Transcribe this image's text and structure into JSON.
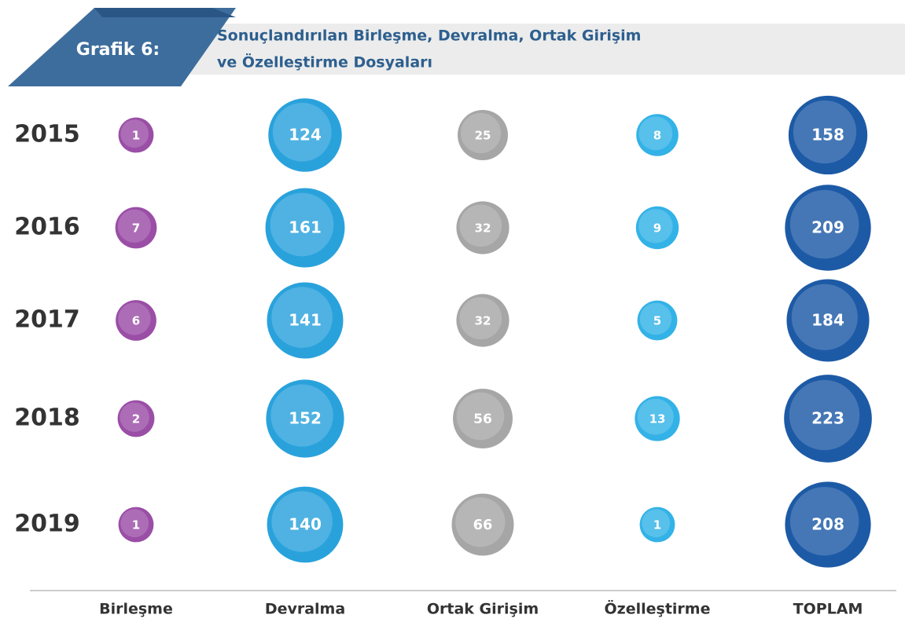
{
  "chart_data": {
    "type": "bubble",
    "label": "Grafik 6:",
    "title": [
      "Sonuçlandırılan Birleşme, Devralma, Ortak Girişim",
      "ve Özelleştirme Dosyaları"
    ],
    "categories": [
      "2015",
      "2016",
      "2017",
      "2018",
      "2019"
    ],
    "series": [
      {
        "name": "Birleşme",
        "color": "#9a4ea6",
        "values": [
          1,
          7,
          6,
          2,
          1
        ]
      },
      {
        "name": "Devralma",
        "color": "#29a2dc",
        "values": [
          124,
          161,
          141,
          152,
          140
        ]
      },
      {
        "name": "Ortak Girişim",
        "color": "#a6a6a6",
        "values": [
          25,
          32,
          32,
          56,
          66
        ]
      },
      {
        "name": "Özelleştirme",
        "color": "#33b2e7",
        "values": [
          8,
          9,
          5,
          13,
          1
        ]
      },
      {
        "name": "TOPLAM",
        "color": "#1d5aa6",
        "values": [
          158,
          209,
          184,
          223,
          208
        ]
      }
    ]
  }
}
